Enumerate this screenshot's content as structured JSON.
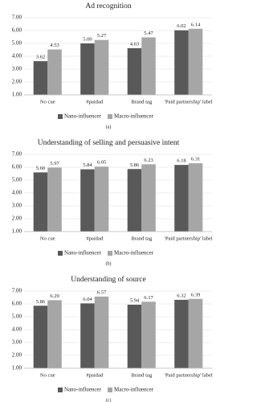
{
  "chart_data": [
    {
      "type": "bar",
      "title": "Ad recognition",
      "caption": "(a)",
      "categories": [
        "No cue",
        "#paidad",
        "Brand tag",
        "'Paid partnership' label"
      ],
      "series": [
        {
          "name": "Nano-influencer",
          "color": "#595959",
          "values": [
            3.62,
            5.0,
            4.63,
            6.02
          ],
          "value_labels": [
            "3.62",
            "5.00",
            "4.63",
            "6.02"
          ]
        },
        {
          "name": "Macro-influencer",
          "color": "#a6a6a6",
          "values": [
            4.53,
            5.27,
            5.47,
            6.14
          ],
          "value_labels": [
            "4.53",
            "5.27",
            "5.47",
            "6.14"
          ]
        }
      ],
      "ylim": [
        1,
        7
      ],
      "yticks": [
        {
          "value": 1,
          "label": "1.00"
        },
        {
          "value": 2,
          "label": "2.00"
        },
        {
          "value": 3,
          "label": "3.00"
        },
        {
          "value": 4,
          "label": "4.00"
        },
        {
          "value": 5,
          "label": "5.00"
        },
        {
          "value": 6,
          "label": "6.00"
        },
        {
          "value": 7,
          "label": "7.00"
        }
      ],
      "grid": true,
      "legend": "bottom"
    },
    {
      "type": "bar",
      "title": "Understanding of selling and persuasive intent",
      "caption": "(b)",
      "categories": [
        "No cue",
        "#paidad",
        "Brand tag",
        "'Paid partnership' label"
      ],
      "series": [
        {
          "name": "Nano-influencer",
          "color": "#595959",
          "values": [
            5.6,
            5.84,
            5.86,
            6.18
          ],
          "value_labels": [
            "5.60",
            "5.84",
            "5.86",
            "6.18"
          ]
        },
        {
          "name": "Macro-influencer",
          "color": "#a6a6a6",
          "values": [
            5.97,
            6.05,
            6.23,
            6.31
          ],
          "value_labels": [
            "5.97",
            "6.05",
            "6.23",
            "6.31"
          ]
        }
      ],
      "ylim": [
        1,
        7
      ],
      "yticks": [
        {
          "value": 1,
          "label": "1.00"
        },
        {
          "value": 2,
          "label": "2.00"
        },
        {
          "value": 3,
          "label": "3.00"
        },
        {
          "value": 4,
          "label": "4.00"
        },
        {
          "value": 5,
          "label": "5.00"
        },
        {
          "value": 6,
          "label": "6.00"
        },
        {
          "value": 7,
          "label": "7.00"
        }
      ],
      "grid": true,
      "legend": "bottom"
    },
    {
      "type": "bar",
      "title": "Understanding of source",
      "caption": "(c)",
      "categories": [
        "No cue",
        "#paidad",
        "Brand tag",
        "'Paid partnership' label"
      ],
      "series": [
        {
          "name": "Nano-influencer",
          "color": "#595959",
          "values": [
            5.86,
            6.04,
            5.94,
            6.32
          ],
          "value_labels": [
            "5.86",
            "6.04",
            "5.94",
            "6.32"
          ]
        },
        {
          "name": "Macro-influencer",
          "color": "#a6a6a6",
          "values": [
            6.29,
            6.57,
            6.17,
            6.39
          ],
          "value_labels": [
            "6.29",
            "6.57",
            "6.17",
            "6.39"
          ]
        }
      ],
      "ylim": [
        1,
        7
      ],
      "yticks": [
        {
          "value": 1,
          "label": "1.00"
        },
        {
          "value": 2,
          "label": "2.00"
        },
        {
          "value": 3,
          "label": "3.00"
        },
        {
          "value": 4,
          "label": "4.00"
        },
        {
          "value": 5,
          "label": "5.00"
        },
        {
          "value": 6,
          "label": "6.00"
        },
        {
          "value": 7,
          "label": "7.00"
        }
      ],
      "grid": true,
      "legend": "bottom"
    }
  ]
}
